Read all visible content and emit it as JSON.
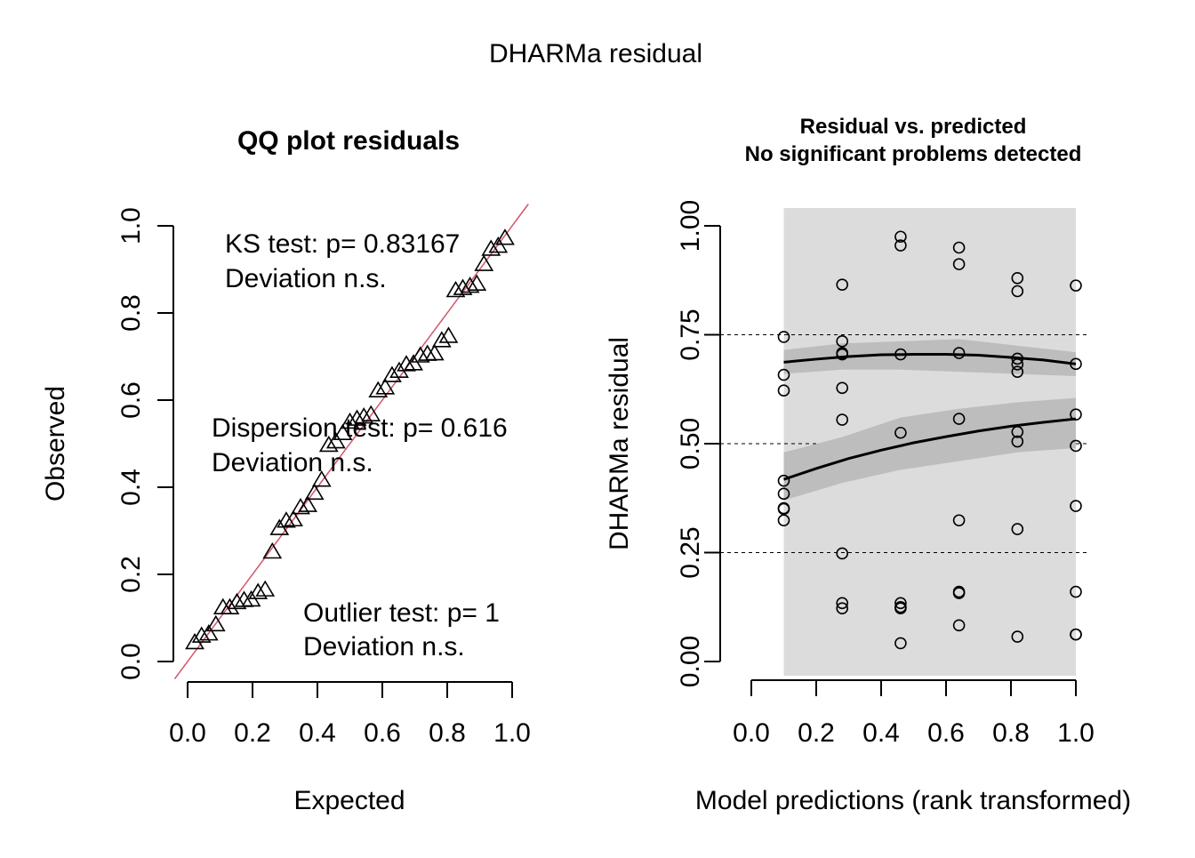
{
  "title": "DHARMa residual",
  "chart_data": [
    {
      "type": "scatter",
      "title": "QQ plot residuals",
      "xlabel": "Expected",
      "ylabel": "Observed",
      "xlim": [
        0,
        1
      ],
      "ylim": [
        0,
        1
      ],
      "xticks": [
        "0.0",
        "0.2",
        "0.4",
        "0.6",
        "0.8",
        "1.0"
      ],
      "yticks": [
        "0.0",
        "0.2",
        "0.4",
        "0.6",
        "0.8",
        "1.0"
      ],
      "marker": "triangle",
      "reference_line": {
        "color": "#d2566b",
        "slope": 1,
        "intercept": 0
      },
      "points": {
        "x": [
          0.022,
          0.043,
          0.065,
          0.087,
          0.109,
          0.13,
          0.152,
          0.174,
          0.196,
          0.217,
          0.239,
          0.261,
          0.283,
          0.304,
          0.326,
          0.348,
          0.37,
          0.391,
          0.413,
          0.435,
          0.457,
          0.478,
          0.5,
          0.522,
          0.543,
          0.565,
          0.587,
          0.609,
          0.63,
          0.652,
          0.674,
          0.696,
          0.717,
          0.739,
          0.761,
          0.783,
          0.804,
          0.826,
          0.848,
          0.87,
          0.891,
          0.913,
          0.935,
          0.957,
          0.978
        ],
        "y": [
          0.042,
          0.057,
          0.062,
          0.083,
          0.122,
          0.122,
          0.134,
          0.139,
          0.14,
          0.157,
          0.163,
          0.25,
          0.304,
          0.321,
          0.324,
          0.352,
          0.357,
          0.385,
          0.415,
          0.495,
          0.503,
          0.522,
          0.548,
          0.555,
          0.56,
          0.565,
          0.62,
          0.627,
          0.655,
          0.665,
          0.68,
          0.682,
          0.7,
          0.704,
          0.705,
          0.735,
          0.745,
          0.85,
          0.855,
          0.86,
          0.865,
          0.91,
          0.945,
          0.952,
          0.97
        ]
      },
      "annotations": [
        {
          "line1": "KS test: p= 0.83167",
          "line2": "Deviation  n.s."
        },
        {
          "line1": "Dispersion test: p= 0.616",
          "line2": "Deviation  n.s."
        },
        {
          "line1": "Outlier test: p= 1",
          "line2": "Deviation  n.s."
        }
      ]
    },
    {
      "type": "scatter",
      "title": "Residual vs. predicted",
      "subtitle": "No significant problems detected",
      "xlabel": "Model predictions (rank transformed)",
      "ylabel": "DHARMa residual",
      "xlim": [
        0,
        1
      ],
      "ylim": [
        0,
        1
      ],
      "xticks": [
        "0.0",
        "0.2",
        "0.4",
        "0.6",
        "0.8",
        "1.0"
      ],
      "yticks": [
        "0.00",
        "0.25",
        "0.50",
        "0.75",
        "1.00"
      ],
      "hlines": [
        0.25,
        0.5,
        0.75
      ],
      "marker": "circle",
      "points": {
        "x": [
          0.1,
          0.1,
          0.1,
          0.1,
          0.1,
          0.1,
          0.1,
          0.1,
          0.28,
          0.28,
          0.28,
          0.28,
          0.28,
          0.28,
          0.28,
          0.28,
          0.28,
          0.46,
          0.46,
          0.46,
          0.46,
          0.46,
          0.46,
          0.46,
          0.46,
          0.64,
          0.64,
          0.64,
          0.64,
          0.64,
          0.64,
          0.64,
          0.64,
          0.82,
          0.82,
          0.82,
          0.82,
          0.82,
          0.82,
          0.82,
          0.82,
          0.82,
          1.0,
          1.0,
          1.0,
          1.0,
          1.0,
          1.0,
          1.0,
          1.0
        ],
        "y": [
          0.745,
          0.658,
          0.622,
          0.415,
          0.385,
          0.352,
          0.35,
          0.324,
          0.865,
          0.735,
          0.708,
          0.705,
          0.628,
          0.555,
          0.248,
          0.134,
          0.122,
          0.975,
          0.955,
          0.705,
          0.525,
          0.134,
          0.125,
          0.122,
          0.042,
          0.95,
          0.912,
          0.708,
          0.557,
          0.324,
          0.16,
          0.157,
          0.083,
          0.85,
          0.695,
          0.682,
          0.665,
          0.527,
          0.505,
          0.304,
          0.057,
          0.88,
          0.863,
          0.683,
          0.567,
          0.495,
          0.357,
          0.16,
          0.062,
          0.062
        ]
      },
      "quantile_bands": [
        {
          "quantile": 0.75,
          "x": [
            0.1,
            0.28,
            0.46,
            0.64,
            0.82,
            1.0
          ],
          "lower": [
            0.66,
            0.67,
            0.67,
            0.665,
            0.66,
            0.655
          ],
          "upper": [
            0.715,
            0.73,
            0.735,
            0.74,
            0.725,
            0.71
          ]
        },
        {
          "quantile": 0.5,
          "x": [
            0.1,
            0.28,
            0.46,
            0.64,
            0.82,
            1.0
          ],
          "lower": [
            0.37,
            0.41,
            0.44,
            0.46,
            0.48,
            0.49
          ],
          "upper": [
            0.48,
            0.515,
            0.56,
            0.58,
            0.595,
            0.605
          ]
        }
      ],
      "quantile_lines": [
        {
          "quantile": 0.75,
          "x": [
            0.1,
            0.2,
            0.3,
            0.4,
            0.5,
            0.6,
            0.7,
            0.8,
            0.9,
            1.0
          ],
          "y": [
            0.687,
            0.694,
            0.7,
            0.704,
            0.705,
            0.705,
            0.703,
            0.698,
            0.692,
            0.683
          ]
        },
        {
          "quantile": 0.5,
          "x": [
            0.1,
            0.2,
            0.3,
            0.4,
            0.5,
            0.6,
            0.7,
            0.8,
            0.9,
            1.0
          ],
          "y": [
            0.418,
            0.443,
            0.466,
            0.485,
            0.502,
            0.516,
            0.529,
            0.54,
            0.549,
            0.557
          ]
        }
      ],
      "band_region": {
        "xmin": 0.1,
        "xmax": 1.0
      }
    }
  ]
}
